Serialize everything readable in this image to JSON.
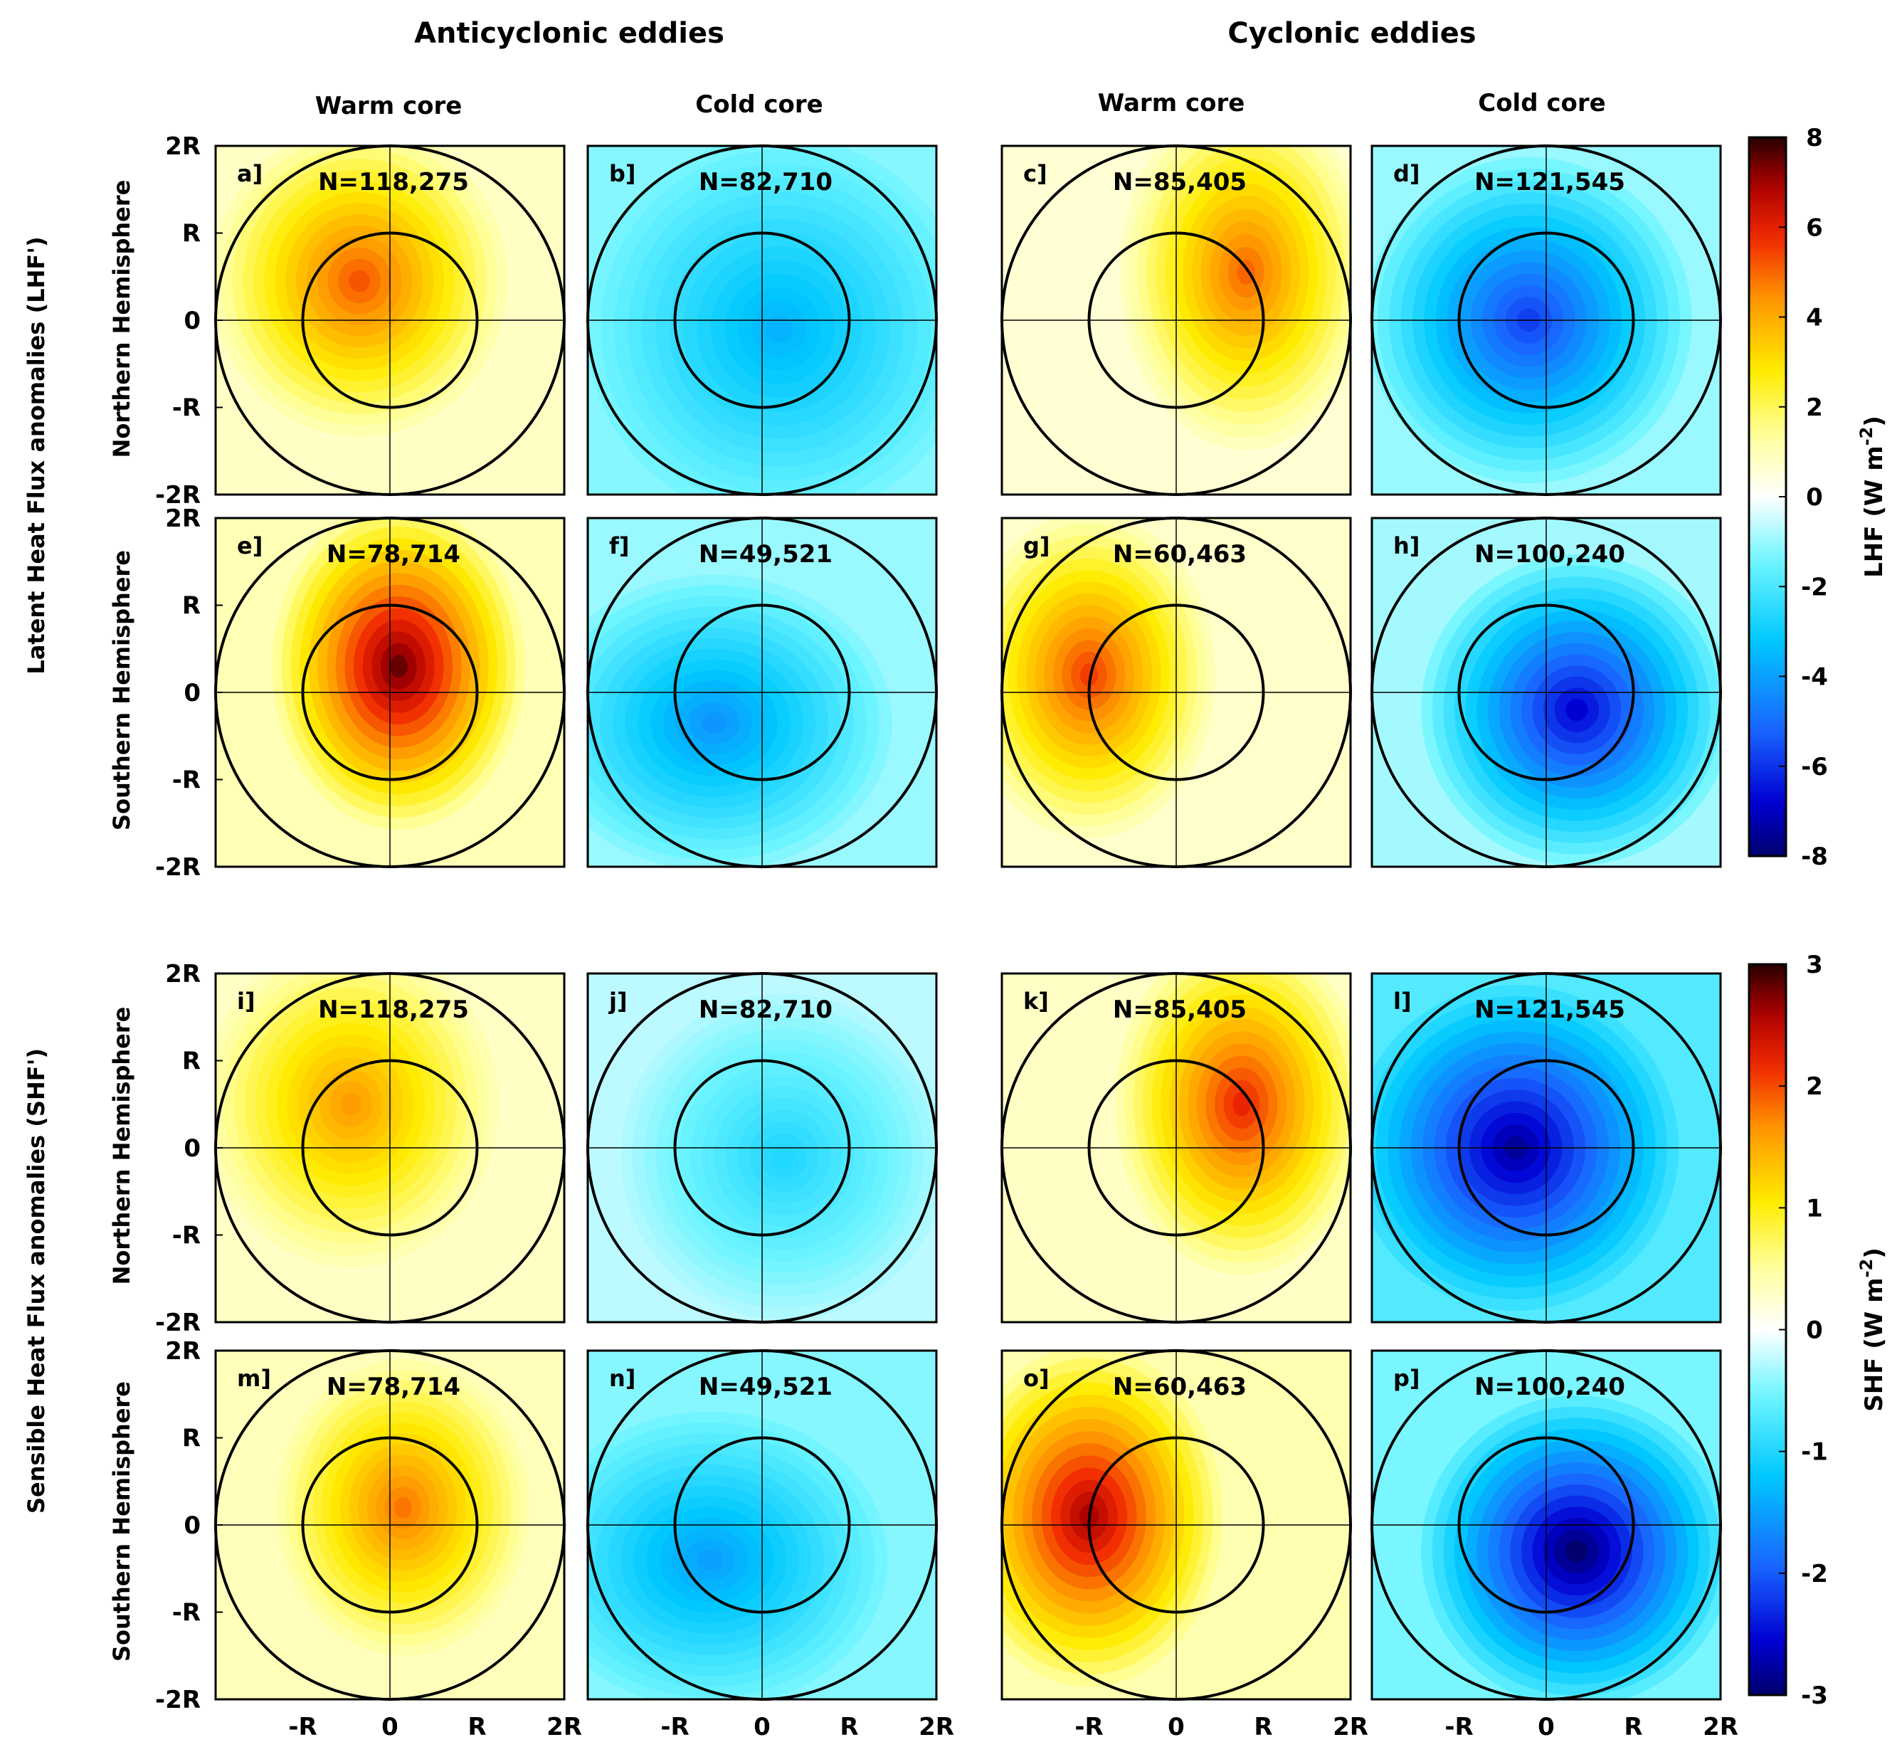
{
  "figure": {
    "group_titles": [
      "Anticyclonic eddies",
      "Cyclonic eddies"
    ],
    "column_titles": [
      "Warm core",
      "Cold core",
      "Warm core",
      "Cold core"
    ],
    "row_group_labels": [
      "Latent Heat Flux anomalies (LHF')",
      "Sensible Heat Flux anomalies (SHF')"
    ],
    "row_labels": [
      "Northern Hemisphere",
      "Southern Hemisphere",
      "Northern Hemisphere",
      "Southern Hemisphere"
    ],
    "axis_tick_labels": [
      "-2R",
      "-R",
      "0",
      "R",
      "2R"
    ],
    "x_tick_labels": [
      "-R",
      "0",
      "R",
      "2R"
    ]
  },
  "chart_data": {
    "type": "heatmap",
    "x_range": [
      "-2R",
      "2R"
    ],
    "y_range": [
      "-2R",
      "2R"
    ],
    "rings": [
      "R",
      "2R"
    ],
    "colormaps": [
      {
        "label": "LHF (W m-2)",
        "unit_base": "LHF (W m",
        "unit_exp": "-2",
        "ticks": [
          8,
          6,
          4,
          2,
          0,
          -2,
          -4,
          -6,
          -8
        ],
        "range": [
          -8,
          8
        ]
      },
      {
        "label": "SHF (W m-2)",
        "unit_base": "SHF (W m",
        "unit_exp": "-2",
        "ticks": [
          3,
          2,
          1,
          0,
          -1,
          -2,
          -3
        ],
        "range": [
          -3,
          3
        ]
      }
    ],
    "panels": [
      {
        "label": "a]",
        "n": "N=118,275",
        "var": "LHF",
        "peak": 5.2,
        "cx": -0.35,
        "cy": 0.45,
        "sx": 1.0,
        "sy": 1.05,
        "bg": 0.8
      },
      {
        "label": "b]",
        "n": "N=82,710",
        "var": "LHF",
        "peak": -3.6,
        "cx": 0.2,
        "cy": -0.1,
        "sx": 1.3,
        "sy": 1.3,
        "bg": -1.2
      },
      {
        "label": "c]",
        "n": "N=85,405",
        "var": "LHF",
        "peak": 5.0,
        "cx": 0.8,
        "cy": 0.55,
        "sx": 0.85,
        "sy": 1.2,
        "bg": 0.6
      },
      {
        "label": "d]",
        "n": "N=121,545",
        "var": "LHF",
        "peak": -5.8,
        "cx": -0.2,
        "cy": 0.0,
        "sx": 1.1,
        "sy": 1.1,
        "bg": -1.0
      },
      {
        "label": "e]",
        "n": "N=78,714",
        "var": "LHF",
        "peak": 7.5,
        "cx": 0.1,
        "cy": 0.3,
        "sx": 0.85,
        "sy": 1.1,
        "bg": 1.0
      },
      {
        "label": "f]",
        "n": "N=49,521",
        "var": "LHF",
        "peak": -4.2,
        "cx": -0.55,
        "cy": -0.35,
        "sx": 1.2,
        "sy": 1.0,
        "bg": -1.0
      },
      {
        "label": "g]",
        "n": "N=60,463",
        "var": "LHF",
        "peak": 5.5,
        "cx": -1.0,
        "cy": 0.2,
        "sx": 0.85,
        "sy": 1.1,
        "bg": 0.7
      },
      {
        "label": "h]",
        "n": "N=100,240",
        "var": "LHF",
        "peak": -6.8,
        "cx": 0.35,
        "cy": -0.2,
        "sx": 1.05,
        "sy": 1.05,
        "bg": -0.9
      },
      {
        "label": "i]",
        "n": "N=118,275",
        "var": "SHF",
        "peak": 1.6,
        "cx": -0.45,
        "cy": 0.5,
        "sx": 1.0,
        "sy": 1.1,
        "bg": 0.3
      },
      {
        "label": "j]",
        "n": "N=82,710",
        "var": "SHF",
        "peak": -1.0,
        "cx": 0.25,
        "cy": -0.1,
        "sx": 1.1,
        "sy": 1.1,
        "bg": -0.25
      },
      {
        "label": "k]",
        "n": "N=85,405",
        "var": "SHF",
        "peak": 2.2,
        "cx": 0.75,
        "cy": 0.5,
        "sx": 0.85,
        "sy": 1.15,
        "bg": 0.3
      },
      {
        "label": "l]",
        "n": "N=121,545",
        "var": "SHF",
        "peak": -2.8,
        "cx": -0.35,
        "cy": 0.0,
        "sx": 1.1,
        "sy": 1.1,
        "bg": -0.7
      },
      {
        "label": "m]",
        "n": "N=78,714",
        "var": "SHF",
        "peak": 1.8,
        "cx": 0.15,
        "cy": 0.2,
        "sx": 0.85,
        "sy": 1.0,
        "bg": 0.35
      },
      {
        "label": "n]",
        "n": "N=49,521",
        "var": "SHF",
        "peak": -1.5,
        "cx": -0.6,
        "cy": -0.4,
        "sx": 1.2,
        "sy": 1.0,
        "bg": -0.45
      },
      {
        "label": "o]",
        "n": "N=60,463",
        "var": "SHF",
        "peak": 2.6,
        "cx": -1.0,
        "cy": 0.1,
        "sx": 0.9,
        "sy": 1.15,
        "bg": 0.4
      },
      {
        "label": "p]",
        "n": "N=100,240",
        "var": "SHF",
        "peak": -3.0,
        "cx": 0.35,
        "cy": -0.3,
        "sx": 1.05,
        "sy": 1.05,
        "bg": -0.5
      }
    ]
  }
}
